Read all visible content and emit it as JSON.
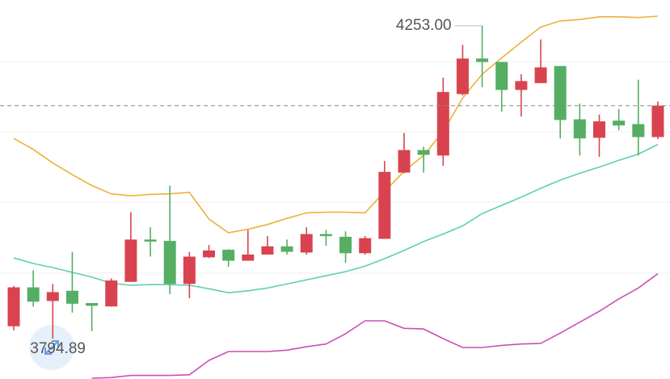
{
  "chart_data": {
    "type": "candlestick",
    "open": [
      3813,
      3870,
      3850,
      3865,
      3847,
      3842,
      3878,
      3940,
      3938,
      3875,
      3914,
      3925,
      3909,
      3918,
      3930,
      3921,
      3948,
      3944,
      3920,
      3941,
      4038,
      4071,
      4063,
      4153,
      4205,
      4200,
      4159,
      4169,
      4194,
      4116,
      4089,
      4114,
      4109,
      4090
    ],
    "high": [
      3872,
      3895,
      3875,
      3922,
      3847,
      3883,
      3980,
      3958,
      4019,
      3922,
      3932,
      3926,
      3954,
      3945,
      3940,
      3958,
      3954,
      3952,
      3945,
      4055,
      4096,
      4076,
      4177,
      4225,
      4253,
      4200,
      4182,
      4233,
      4194,
      4139,
      4123,
      4131,
      4174,
      4142
    ],
    "low": [
      3807,
      3842,
      3794.89,
      3833,
      3806,
      3842,
      3878,
      3915,
      3860,
      3854,
      3913,
      3900,
      3909,
      3918,
      3918,
      3918,
      3931,
      3906,
      3918,
      3941,
      4037,
      4038,
      4048,
      4151,
      4163,
      4127,
      4120,
      4169,
      4088,
      4063,
      4061,
      4100,
      4063,
      4087
    ],
    "close": [
      3870,
      3849,
      3863,
      3846,
      3843,
      3880,
      3940,
      3937,
      3875,
      3915,
      3924,
      3909,
      3918,
      3930,
      3922,
      3948,
      3945,
      3920,
      3942,
      4039,
      4071,
      4064,
      4156,
      4205,
      4200,
      4159,
      4172,
      4192,
      4115,
      4088,
      4113,
      4107,
      4090,
      4136
    ],
    "high_labels": [
      null,
      null,
      null,
      null,
      null,
      null,
      null,
      null,
      null,
      null,
      null,
      null,
      null,
      null,
      null,
      null,
      null,
      null,
      null,
      null,
      null,
      null,
      null,
      null,
      "4253.00",
      null,
      null,
      null,
      null,
      null,
      null,
      null,
      null,
      null
    ],
    "low_labels": [
      null,
      null,
      "3794.89",
      null,
      null,
      null,
      null,
      null,
      null,
      null,
      null,
      null,
      null,
      null,
      null,
      null,
      null,
      null,
      null,
      null,
      null,
      null,
      null,
      null,
      null,
      null,
      null,
      null,
      null,
      null,
      null,
      null,
      null,
      null
    ],
    "up_color": "#d9434f",
    "down_color": "#55ae64",
    "last_price_line": true,
    "lines": [
      {
        "color": "#eab23a",
        "values": [
          4088,
          4072,
          4052,
          4035,
          4019,
          4007,
          4004,
          4006,
          4007,
          4009,
          3970,
          3950,
          3955,
          3962,
          3971,
          3979,
          3980,
          3980,
          3979,
          4010,
          4040,
          4063,
          4098,
          4147,
          4182,
          4206,
          4229,
          4251,
          4260,
          4262,
          4266,
          4266,
          4265,
          4267
        ]
      },
      {
        "color": "#5fcfb3",
        "values": [
          3913,
          3905,
          3899,
          3892,
          3885,
          3876,
          3873,
          3874,
          3874,
          3873,
          3868,
          3862,
          3865,
          3869,
          3875,
          3881,
          3887,
          3893,
          3901,
          3912,
          3924,
          3937,
          3948,
          3960,
          3978,
          3990,
          4002,
          4015,
          4027,
          4037,
          4046,
          4056,
          4065,
          4079
        ]
      },
      {
        "color": "#cc4fb6",
        "values": [
          null,
          null,
          null,
          null,
          3737,
          3738,
          3741,
          3741,
          3741,
          3742,
          3763,
          3776,
          3776,
          3776,
          3778,
          3783,
          3787,
          3802,
          3821,
          3821,
          3810,
          3809,
          3795,
          3782,
          3782,
          3785,
          3787,
          3788,
          3803,
          3819,
          3835,
          3853,
          3869,
          3890
        ]
      }
    ]
  }
}
